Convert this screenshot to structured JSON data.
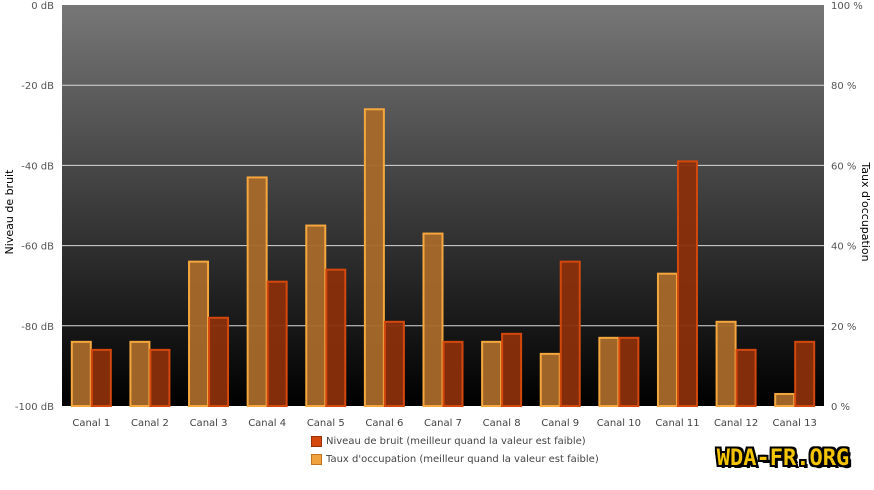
{
  "chart_data": {
    "type": "bar",
    "categories": [
      "Canal 1",
      "Canal 2",
      "Canal 3",
      "Canal 4",
      "Canal 5",
      "Canal 6",
      "Canal 7",
      "Canal 8",
      "Canal 9",
      "Canal 10",
      "Canal 11",
      "Canal 12",
      "Canal 13"
    ],
    "series": [
      {
        "name": "Taux d'occupation (meilleur quand la valeur est faible)",
        "axis": "right",
        "unit": "%",
        "values": [
          16,
          16,
          36,
          57,
          45,
          74,
          43,
          16,
          13,
          17,
          33,
          21,
          3
        ]
      },
      {
        "name": "Niveau de bruit (meilleur quand la valeur est faible)",
        "axis": "left",
        "unit": "dB",
        "values": [
          -86,
          -86,
          -78,
          -69,
          -66,
          -79,
          -84,
          -82,
          -64,
          -83,
          -39,
          -86,
          -84
        ]
      }
    ],
    "ylabel_left": "Niveau de bruit",
    "ylabel_right": "Taux d'occupation",
    "ylim_left": [
      -100,
      0
    ],
    "ylim_right": [
      0,
      100
    ],
    "yticks_left": [
      "0 dB",
      "-20 dB",
      "-40 dB",
      "-60 dB",
      "-80 dB",
      "-100 dB"
    ],
    "yticks_right": [
      "100 %",
      "80 %",
      "60 %",
      "40 %",
      "20 %",
      "0 %"
    ],
    "grid": true,
    "legend_position": "bottom-center",
    "colors": {
      "noise": "#d4480e",
      "occupation": "#f0a23c",
      "plot_top": "#777777",
      "plot_bottom": "#000000"
    }
  },
  "legend": {
    "noise_label": "Niveau de bruit (meilleur quand la valeur est faible)",
    "occupation_label": "Taux d'occupation (meilleur quand la valeur est faible)"
  },
  "watermark": {
    "text": "WDA-FR.ORG"
  }
}
